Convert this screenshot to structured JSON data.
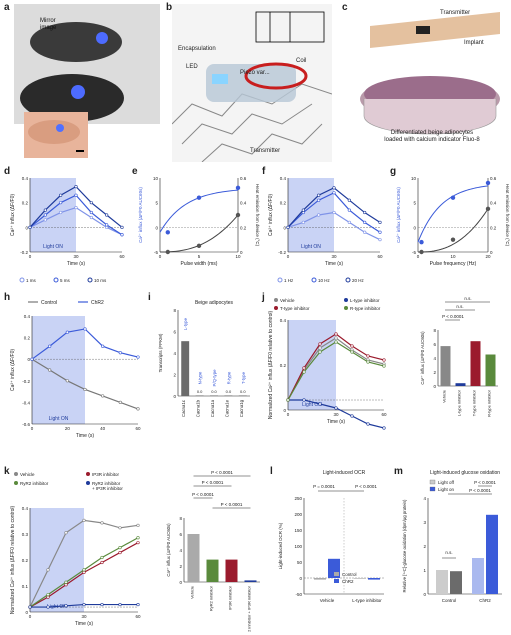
{
  "panel_labels": {
    "a": "a",
    "b": "b",
    "c": "c",
    "d": "d",
    "e": "e",
    "f": "f",
    "g": "g",
    "h": "h",
    "i": "i",
    "j": "j",
    "k": "k",
    "l": "l",
    "m": "m"
  },
  "panel_a": {
    "mirror_image": "Mirror\nimage"
  },
  "panel_b": {
    "encapsulation": "Encapsulation",
    "led": "LED",
    "coil": "Coil",
    "piezo_varactor": "Piezo var...",
    "transmitter": "Transmitter"
  },
  "panel_c": {
    "transmitter": "Transmitter",
    "implant": "Implant",
    "dish": "Differentiated beige adipocytes\nloaded with calcium indicator Fluo-8"
  },
  "common": {
    "light_on": "Light ON",
    "light_on_lower": "Light on",
    "light_off": "Light off",
    "time_s": "Time (s)",
    "ca_y": "Ca²⁺ influx (ΔF/F0)"
  },
  "panel_d": {
    "legend": [
      "1 ms",
      "5 ms",
      "10 ms"
    ],
    "y_ticks": [
      "0.4",
      "0.2",
      "0",
      "-0.2"
    ],
    "x_ticks": [
      "0",
      "30",
      "60"
    ]
  },
  "panel_e": {
    "xlabel": "Pulse width (ms)",
    "ylabel_left": "Ca²⁺ influx (ΔF/F0 AUC60s)",
    "ylabel_right": "Heat emission from device (°C)",
    "y_left_ticks": [
      "10",
      "5",
      "0",
      "-5"
    ],
    "y_right_ticks": [
      "0.6",
      "0.4",
      "0.2",
      "0"
    ],
    "x_ticks": [
      "0",
      "5",
      "10"
    ]
  },
  "panel_f": {
    "legend": [
      "1 Hz",
      "10 Hz",
      "20 Hz"
    ],
    "y_ticks": [
      "0.4",
      "0.2",
      "0",
      "-0.2"
    ],
    "x_ticks": [
      "0",
      "30",
      "60"
    ]
  },
  "panel_g": {
    "xlabel": "Pulse frequency (Hz)",
    "ylabel_left": "Ca²⁺ influx (ΔF/F0 AUC60s)",
    "ylabel_right": "Heat emission from device (°C)",
    "y_left_ticks": [
      "10",
      "5",
      "0",
      "-5"
    ],
    "y_right_ticks": [
      "0.6",
      "0.4",
      "0.2",
      "0"
    ],
    "x_ticks": [
      "0",
      "10",
      "20"
    ]
  },
  "panel_h": {
    "legend": [
      "Control",
      "ChR2"
    ],
    "ylabel": "Ca²⁺ influx (ΔF/F0)",
    "y_ticks": [
      "0.4",
      "0.2",
      "0",
      "-0.2",
      "-0.4",
      "-0.6"
    ],
    "x_ticks": [
      "0",
      "20",
      "40",
      "60"
    ]
  },
  "panel_i": {
    "title": "Beige adipocytes",
    "ylabel": "Transcripts (FPKM)",
    "y_ticks": [
      "8",
      "6",
      "4",
      "2",
      "0"
    ],
    "bar_labels": [
      "L-type",
      "N-type",
      "P/Q-type",
      "R-type",
      "T-type"
    ],
    "categories": [
      "Cacna1c",
      "Cacna1b",
      "Cacna1a",
      "Cacna1e",
      "Cacna1g"
    ],
    "values": [
      5.1,
      0.05,
      0.05,
      0.05,
      0.05
    ],
    "value_labels": [
      "",
      "0.0",
      "0.0",
      "0.0",
      "0.0"
    ]
  },
  "panel_j": {
    "legend": [
      "Vehicle",
      "L-type inhibitor",
      "T-type inhibitor",
      "R-type inhibitor"
    ],
    "ylabel": "Normalized Ca²⁺ influx (ΔF/F0 relative to control)",
    "y_ticks": [
      "0.4",
      "0.2",
      "0"
    ],
    "x_ticks": [
      "0",
      "30",
      "60"
    ],
    "bar_ylabel": "Ca²⁺ influx (ΔF/F0 AUC60s)",
    "bar_labels": [
      "Vehicle",
      "L-type inhibitor",
      "T-type inhibitor",
      "R-type inhibitor"
    ],
    "bar_values": [
      5.7,
      0.4,
      6.4,
      4.5
    ],
    "bar_yticks": [
      "8",
      "6",
      "4",
      "2",
      "0"
    ],
    "sig": [
      "n.s.",
      "n.s.",
      "P < 0.0001"
    ]
  },
  "panel_k": {
    "legend": [
      "Vehicle",
      "IP3R inhibitor",
      "RyR2 inhibitor",
      "RyR2 inhibitor\n+ IP3R inhibitor"
    ],
    "ylabel": "Normalized Ca²⁺ influx (ΔF/F0 relative to control)",
    "y_ticks": [
      "0.4",
      "0.3",
      "0.2",
      "0.1",
      "0"
    ],
    "x_ticks": [
      "0",
      "30",
      "60"
    ],
    "bar_ylabel": "Ca²⁺ influx (ΔF/F0 AUC60s)",
    "bar_labels": [
      "Vehicle",
      "RyR2 inhibitor",
      "IP3R inhibitor",
      "RyR2 inhibitor + IP3R inhibitor"
    ],
    "bar_values": [
      6.0,
      2.8,
      2.8,
      0.2
    ],
    "bar_yticks": [
      "8",
      "6",
      "4",
      "2",
      "0"
    ],
    "sig": [
      "P < 0.0001",
      "P < 0.0001",
      "P < 0.0001",
      "P < 0.0001"
    ]
  },
  "panel_l": {
    "title": "Light-induced OCR",
    "ylabel": "Light-induced OCR (%)",
    "y_ticks": [
      "250",
      "200",
      "150",
      "100",
      "50",
      "0",
      "-50"
    ],
    "groups": [
      "Vehicle",
      "L-type inhibitor"
    ],
    "legend": [
      "Control",
      "ChR2"
    ],
    "bar_values": [
      [
        -5,
        60
      ],
      [
        -2,
        -5
      ]
    ],
    "sig": [
      "P = 0.0001",
      "P < 0.0001"
    ]
  },
  "panel_m": {
    "title": "Light-induced glucose oxidation",
    "ylabel": "Relative [¹⁴C]-glucose oxidation (dpm/μg protein)",
    "y_ticks": [
      "4",
      "3",
      "2",
      "1",
      "0"
    ],
    "groups": [
      "Control",
      "ChR2"
    ],
    "bar_values": [
      [
        1.0,
        0.95
      ],
      [
        1.5,
        3.3
      ]
    ],
    "sig": [
      "n.s.",
      "P < 0.0001",
      "P < 0.0001"
    ],
    "legend": [
      "Light off",
      "Light on"
    ]
  },
  "colors": {
    "blue_dark": "#1f3b9b",
    "blue_mid": "#3b5bd9",
    "blue_light": "#7f93e8",
    "red": "#9b1b2d",
    "green": "#5a8a3c",
    "gray": "#8c8c8c",
    "shade": "#c9d3f5"
  },
  "chart_data": [
    {
      "type": "line",
      "x": [
        0,
        10,
        20,
        30,
        40,
        50,
        60
      ],
      "ylim": [
        -0.2,
        0.4
      ],
      "series": [
        {
          "name": "1 ms",
          "values": [
            0,
            0.06,
            0.12,
            0.16,
            0.08,
            0.0,
            -0.06
          ]
        },
        {
          "name": "5 ms",
          "values": [
            0,
            0.1,
            0.2,
            0.26,
            0.12,
            0.02,
            -0.06
          ]
        },
        {
          "name": "10 ms",
          "values": [
            0,
            0.14,
            0.26,
            0.33,
            0.2,
            0.1,
            0.0
          ]
        }
      ]
    },
    {
      "type": "scatter",
      "x": [
        1,
        5,
        10
      ],
      "xlim": [
        0,
        10
      ],
      "ylim": [
        -5,
        10
      ],
      "series": [
        {
          "name": "Ca²⁺ influx",
          "values": [
            -1,
            6,
            8
          ]
        },
        {
          "name": "Heat emission",
          "values": [
            0,
            0.05,
            0.3
          ]
        }
      ]
    },
    {
      "type": "line",
      "x": [
        0,
        10,
        20,
        30,
        40,
        50,
        60
      ],
      "ylim": [
        -0.2,
        0.4
      ],
      "series": [
        {
          "name": "1 Hz",
          "values": [
            0,
            0.04,
            0.1,
            0.12,
            0.04,
            -0.04,
            -0.1
          ]
        },
        {
          "name": "10 Hz",
          "values": [
            0,
            0.12,
            0.22,
            0.28,
            0.14,
            0.04,
            -0.04
          ]
        },
        {
          "name": "20 Hz",
          "values": [
            0,
            0.14,
            0.26,
            0.32,
            0.22,
            0.12,
            0.04
          ]
        }
      ]
    },
    {
      "type": "scatter",
      "x": [
        1,
        10,
        20
      ],
      "xlim": [
        0,
        20
      ],
      "ylim": [
        -5,
        10
      ],
      "series": [
        {
          "name": "Ca²⁺ influx",
          "values": [
            -3,
            6,
            9
          ]
        },
        {
          "name": "Heat emission",
          "values": [
            0,
            0.1,
            0.35
          ]
        }
      ]
    },
    {
      "type": "line",
      "x": [
        0,
        10,
        20,
        30,
        40,
        50,
        60
      ],
      "ylim": [
        -0.6,
        0.4
      ],
      "series": [
        {
          "name": "Control",
          "values": [
            0,
            -0.1,
            -0.2,
            -0.28,
            -0.34,
            -0.4,
            -0.46
          ]
        },
        {
          "name": "ChR2",
          "values": [
            0,
            0.12,
            0.25,
            0.28,
            0.12,
            0.06,
            0.02
          ]
        }
      ]
    },
    {
      "type": "bar",
      "categories": [
        "Cacna1c",
        "Cacna1b",
        "Cacna1a",
        "Cacna1e",
        "Cacna1g"
      ],
      "values": [
        5.1,
        0.05,
        0.05,
        0.05,
        0.05
      ],
      "ylim": [
        0,
        8
      ]
    },
    {
      "type": "bar",
      "categories": [
        "Vehicle",
        "L-type inhibitor",
        "T-type inhibitor",
        "R-type inhibitor"
      ],
      "values": [
        5.7,
        0.4,
        6.4,
        4.5
      ],
      "ylim": [
        0,
        8
      ]
    },
    {
      "type": "bar",
      "categories": [
        "Vehicle",
        "RyR2 inhibitor",
        "IP3R inhibitor",
        "RyR2 inhibitor + IP3R inhibitor"
      ],
      "values": [
        6.0,
        2.8,
        2.8,
        0.2
      ],
      "ylim": [
        0,
        8
      ]
    },
    {
      "type": "bar",
      "categories": [
        "Vehicle",
        "L-type inhibitor"
      ],
      "series": [
        {
          "name": "Control",
          "values": [
            -5,
            -2
          ]
        },
        {
          "name": "ChR2",
          "values": [
            60,
            -5
          ]
        }
      ],
      "ylim": [
        -50,
        250
      ]
    },
    {
      "type": "bar",
      "categories": [
        "Control",
        "ChR2"
      ],
      "series": [
        {
          "name": "Light off",
          "values": [
            1.0,
            1.5
          ]
        },
        {
          "name": "Light on",
          "values": [
            0.95,
            3.3
          ]
        }
      ],
      "ylim": [
        0,
        4
      ]
    }
  ]
}
